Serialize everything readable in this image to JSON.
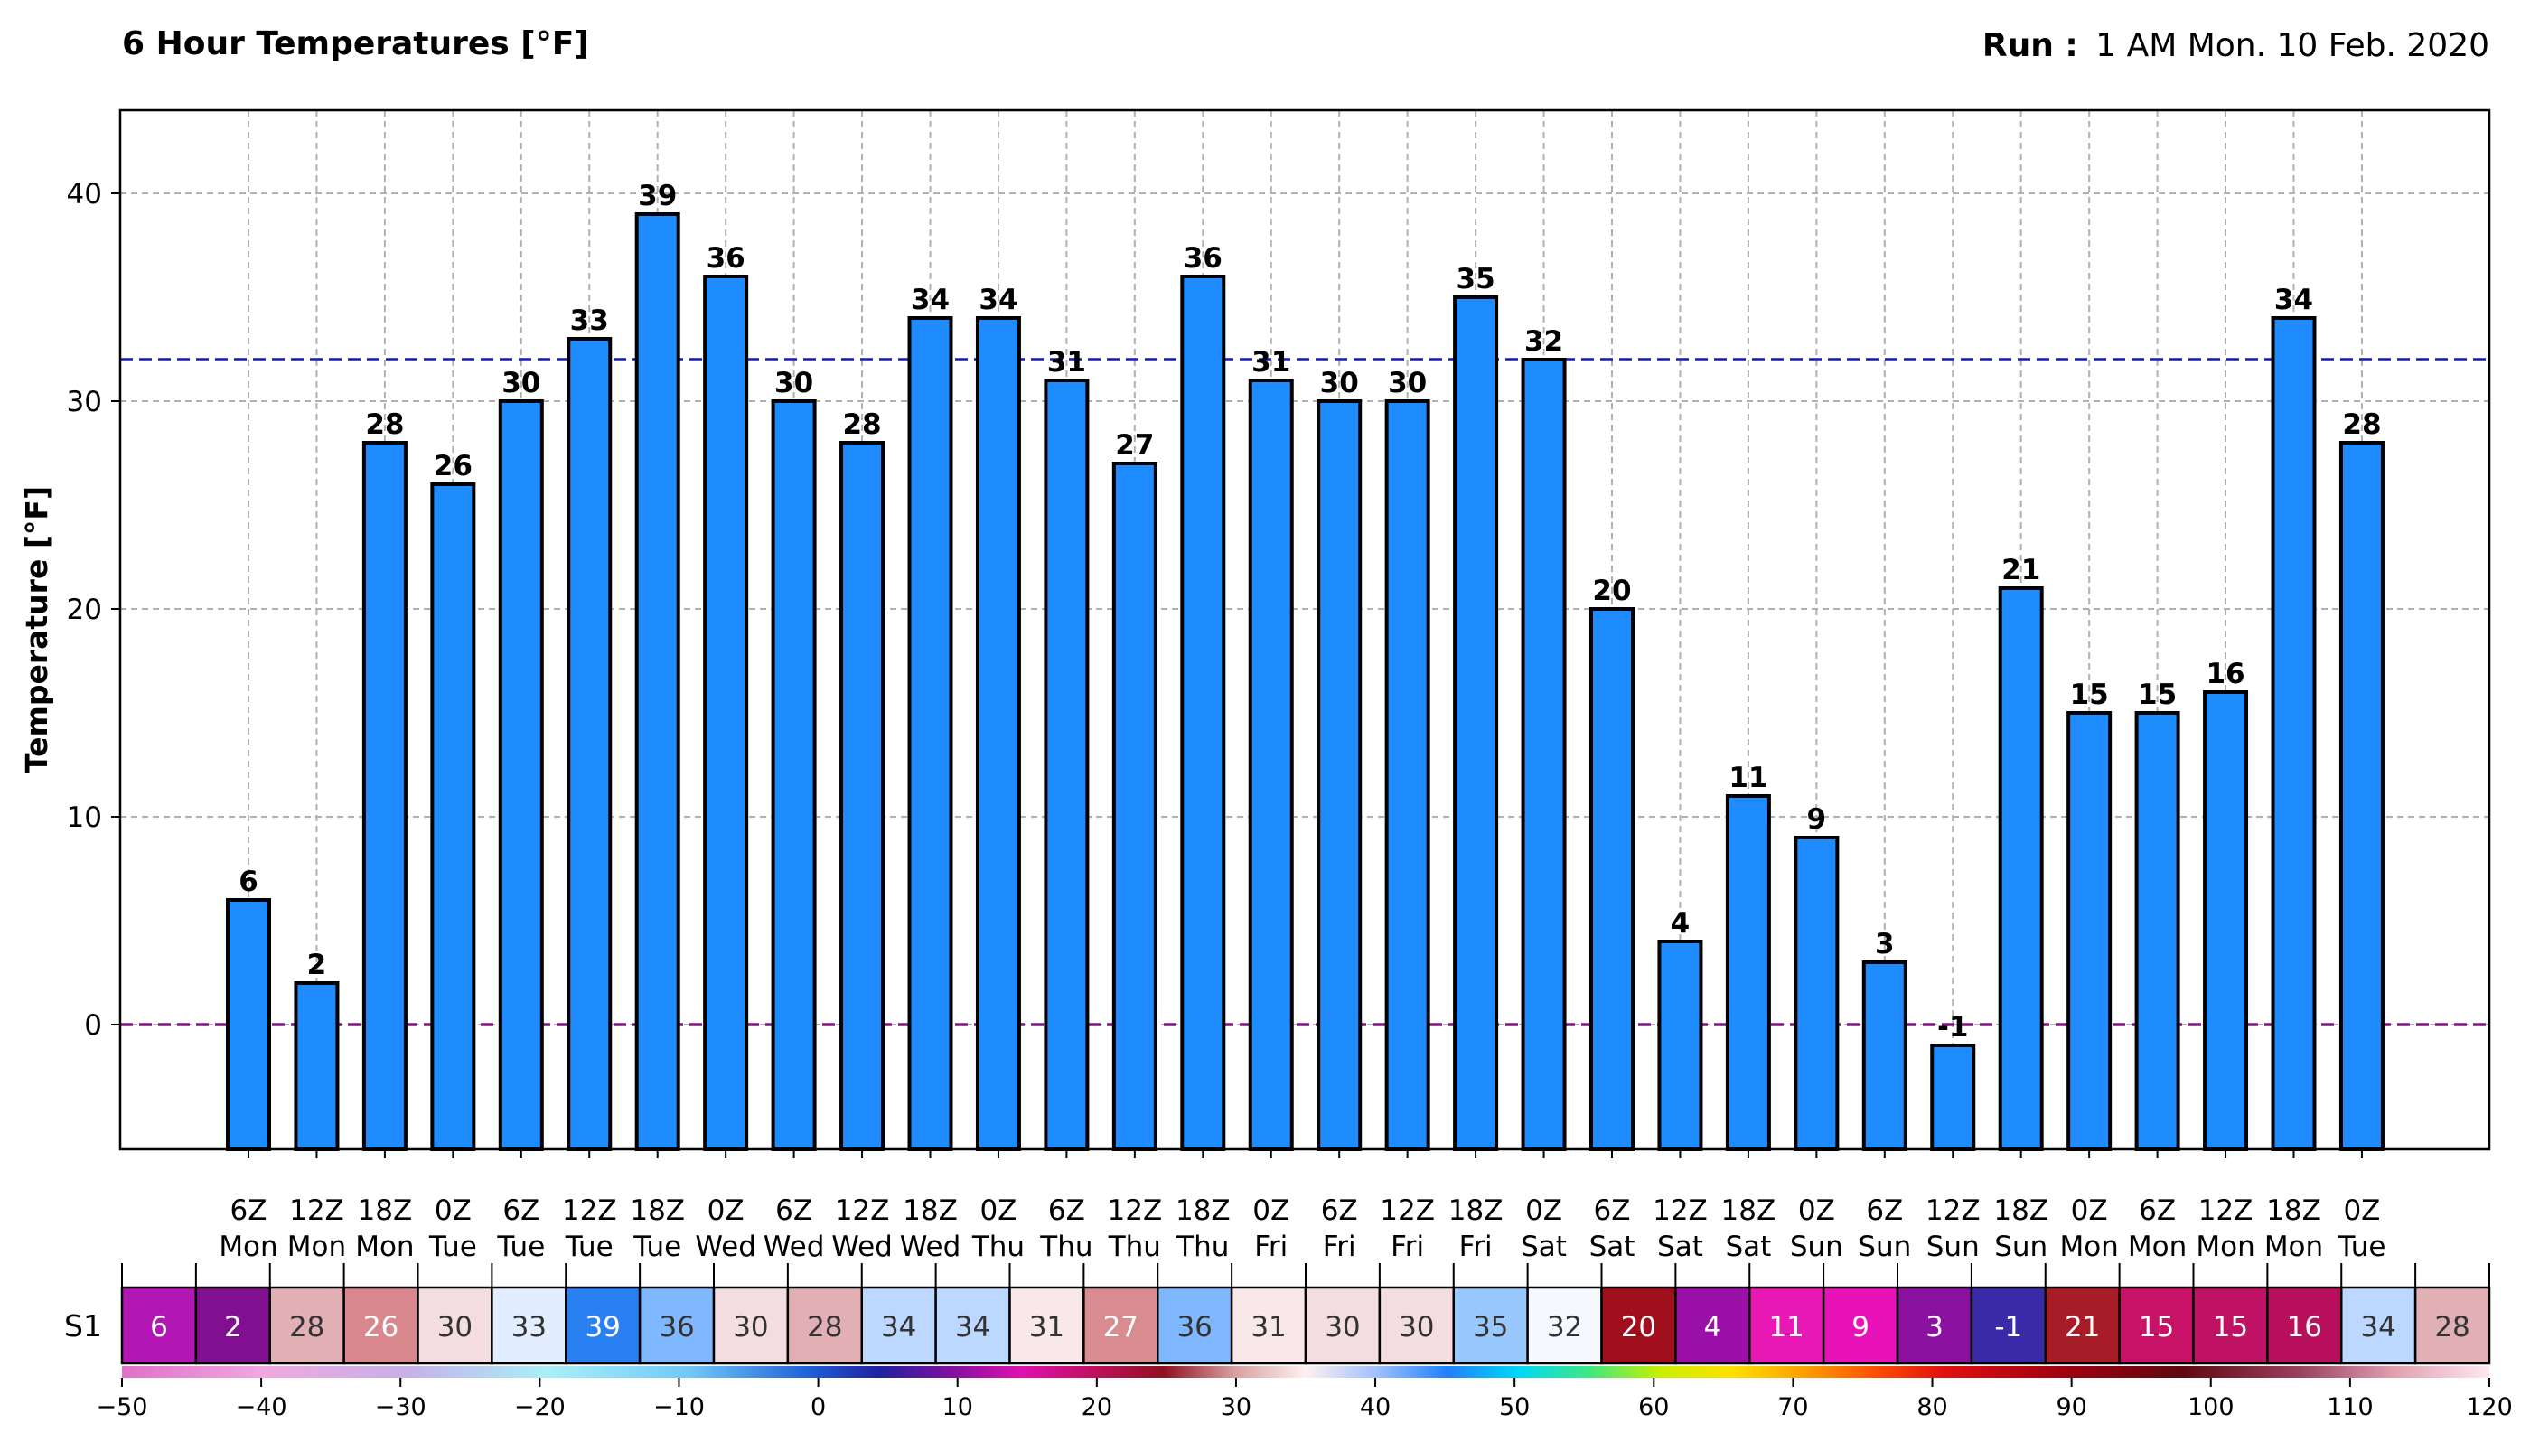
{
  "header": {
    "title": "6 Hour Temperatures [°F]",
    "run_label": "Run :",
    "run_value": "1 AM Mon. 10 Feb. 2020"
  },
  "chart_data": {
    "type": "bar",
    "ylabel": "Temperature [°F]",
    "ylim": [
      -6,
      44
    ],
    "yticks": [
      0,
      10,
      20,
      30,
      40
    ],
    "grid": true,
    "bar_color": "#1e8cff",
    "reference_lines": [
      {
        "value": 32,
        "color": "#1a1aa8",
        "style": "dashed"
      },
      {
        "value": 0,
        "color": "#7a1a7a",
        "style": "dashed"
      }
    ],
    "categories": [
      "6Z Mon",
      "12Z Mon",
      "18Z Mon",
      "0Z Tue",
      "6Z Tue",
      "12Z Tue",
      "18Z Tue",
      "0Z Wed",
      "6Z Wed",
      "12Z Wed",
      "18Z Wed",
      "0Z Thu",
      "6Z Thu",
      "12Z Thu",
      "18Z Thu",
      "0Z Fri",
      "6Z Fri",
      "12Z Fri",
      "18Z Fri",
      "0Z Sat",
      "6Z Sat",
      "12Z Sat",
      "18Z Sat",
      "0Z Sun",
      "6Z Sun",
      "12Z Sun",
      "18Z Sun",
      "0Z Mon",
      "6Z Mon",
      "12Z Mon",
      "18Z Mon",
      "0Z Tue"
    ],
    "series": [
      {
        "values": [
          6,
          2,
          28,
          26,
          30,
          33,
          39,
          36,
          30,
          28,
          34,
          34,
          31,
          27,
          36,
          31,
          30,
          30,
          35,
          32,
          20,
          4,
          11,
          9,
          3,
          -1,
          21,
          15,
          15,
          16,
          34,
          28
        ]
      }
    ]
  },
  "strip": {
    "label": "S1",
    "values": [
      6,
      2,
      28,
      26,
      30,
      33,
      39,
      36,
      30,
      28,
      34,
      34,
      31,
      27,
      36,
      31,
      30,
      30,
      35,
      32,
      20,
      4,
      11,
      9,
      3,
      -1,
      21,
      15,
      15,
      16,
      34,
      28
    ],
    "colors": [
      "#b317b3",
      "#80108f",
      "#e0b0b4",
      "#d8888c",
      "#f4dde0",
      "#e2eeff",
      "#2a80f0",
      "#80b8ff",
      "#f4dde0",
      "#e2b0b4",
      "#bcd8ff",
      "#bcd8ff",
      "#f8e8ea",
      "#d88c90",
      "#80b8ff",
      "#f8e8ea",
      "#f4dde0",
      "#f4dde0",
      "#99c8ff",
      "#f6f8ff",
      "#a00f1c",
      "#9a10a8",
      "#e818b4",
      "#e812b8",
      "#8a10a0",
      "#3a2aa8",
      "#a81c28",
      "#c81268",
      "#c01264",
      "#b8105c",
      "#bcd8ff",
      "#e0b0b4"
    ],
    "text_colors": [
      "#ffffff",
      "#ffffff",
      "#333333",
      "#ffffff",
      "#333333",
      "#333333",
      "#ffffff",
      "#333333",
      "#333333",
      "#333333",
      "#333333",
      "#333333",
      "#333333",
      "#ffffff",
      "#333333",
      "#333333",
      "#333333",
      "#333333",
      "#333333",
      "#333333",
      "#ffffff",
      "#ffffff",
      "#ffffff",
      "#ffffff",
      "#ffffff",
      "#ffffff",
      "#ffffff",
      "#ffffff",
      "#ffffff",
      "#ffffff",
      "#333333",
      "#333333"
    ]
  },
  "colorbar": {
    "ticks": [
      "−50",
      "−40",
      "−30",
      "−20",
      "−10",
      "0",
      "10",
      "20",
      "30",
      "40",
      "50",
      "60",
      "70",
      "80",
      "90",
      "100",
      "110",
      "120"
    ]
  }
}
